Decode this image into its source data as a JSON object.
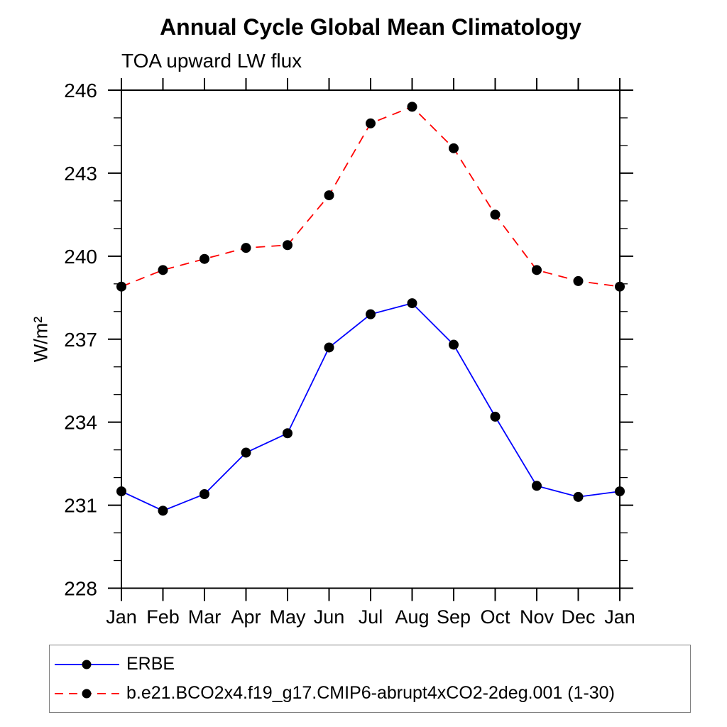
{
  "page": {
    "title": "Annual Cycle Global Mean Climatology",
    "subtitle": "TOA upward LW flux"
  },
  "chart_data": {
    "type": "line",
    "title": "Annual Cycle Global Mean Climatology",
    "subtitle": "TOA upward LW flux",
    "xlabel": "",
    "ylabel": "W/m²",
    "x_categories": [
      "Jan",
      "Feb",
      "Mar",
      "Apr",
      "May",
      "Jun",
      "Jul",
      "Aug",
      "Sep",
      "Oct",
      "Nov",
      "Dec",
      "Jan"
    ],
    "ylim": [
      228,
      246
    ],
    "y_major_ticks": [
      228,
      231,
      234,
      237,
      240,
      243,
      246
    ],
    "y_minor_step": 1,
    "grid": false,
    "legend_position": "bottom",
    "marker_color": "#000000",
    "axis_color": "#000000",
    "series": [
      {
        "name": "ERBE",
        "color": "#0000ff",
        "line_style": "solid",
        "marker": "filled-circle",
        "marker_color": "#000000",
        "values": [
          231.5,
          230.8,
          231.4,
          232.9,
          233.6,
          236.7,
          237.9,
          238.3,
          236.8,
          234.2,
          231.7,
          231.3,
          231.5
        ]
      },
      {
        "name": "b.e21.BCO2x4.f19_g17.CMIP6-abrupt4xCO2-2deg.001 (1-30)",
        "color": "#ff0000",
        "line_style": "dashed",
        "marker": "filled-circle",
        "marker_color": "#000000",
        "values": [
          238.9,
          239.5,
          239.9,
          240.3,
          240.4,
          242.2,
          244.8,
          245.4,
          243.9,
          241.5,
          239.5,
          239.1,
          238.9
        ]
      }
    ]
  }
}
